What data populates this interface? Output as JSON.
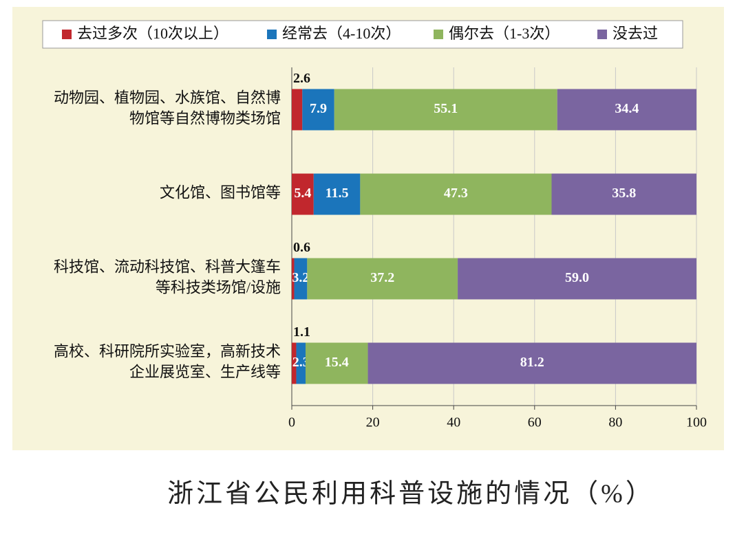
{
  "chart_data": {
    "type": "stacked-bar-horizontal",
    "title": "浙江省公民利用科普设施的情况（%）",
    "categories": [
      "动物园、植物园、水族馆、自然博物馆等自然博物类场馆",
      "文化馆、图书馆等",
      "科技馆、流动科技馆、科普大篷车等科技类场馆/设施",
      "高校、科研院所实验室，高新技术企业展览室、生产线等"
    ],
    "series": [
      {
        "name": "去过多次（10次以上）",
        "color": "#c1272d",
        "values": [
          2.6,
          5.4,
          0.6,
          1.1
        ]
      },
      {
        "name": "经常去（4-10次）",
        "color": "#1b75bb",
        "values": [
          7.9,
          11.5,
          3.2,
          2.3
        ]
      },
      {
        "name": "偶尔去（1-3次）",
        "color": "#8fb55e",
        "values": [
          55.1,
          47.3,
          37.2,
          15.4
        ]
      },
      {
        "name": "没去过",
        "color": "#7a65a0",
        "values": [
          34.4,
          35.8,
          59.0,
          81.2
        ],
        "value_labels": [
          "34.4",
          "35.8",
          "59.0",
          "81.2"
        ]
      }
    ],
    "xlim": [
      0,
      100
    ],
    "xticks": [
      0,
      20,
      40,
      60,
      80,
      100
    ],
    "grid": true,
    "legend": "top"
  }
}
